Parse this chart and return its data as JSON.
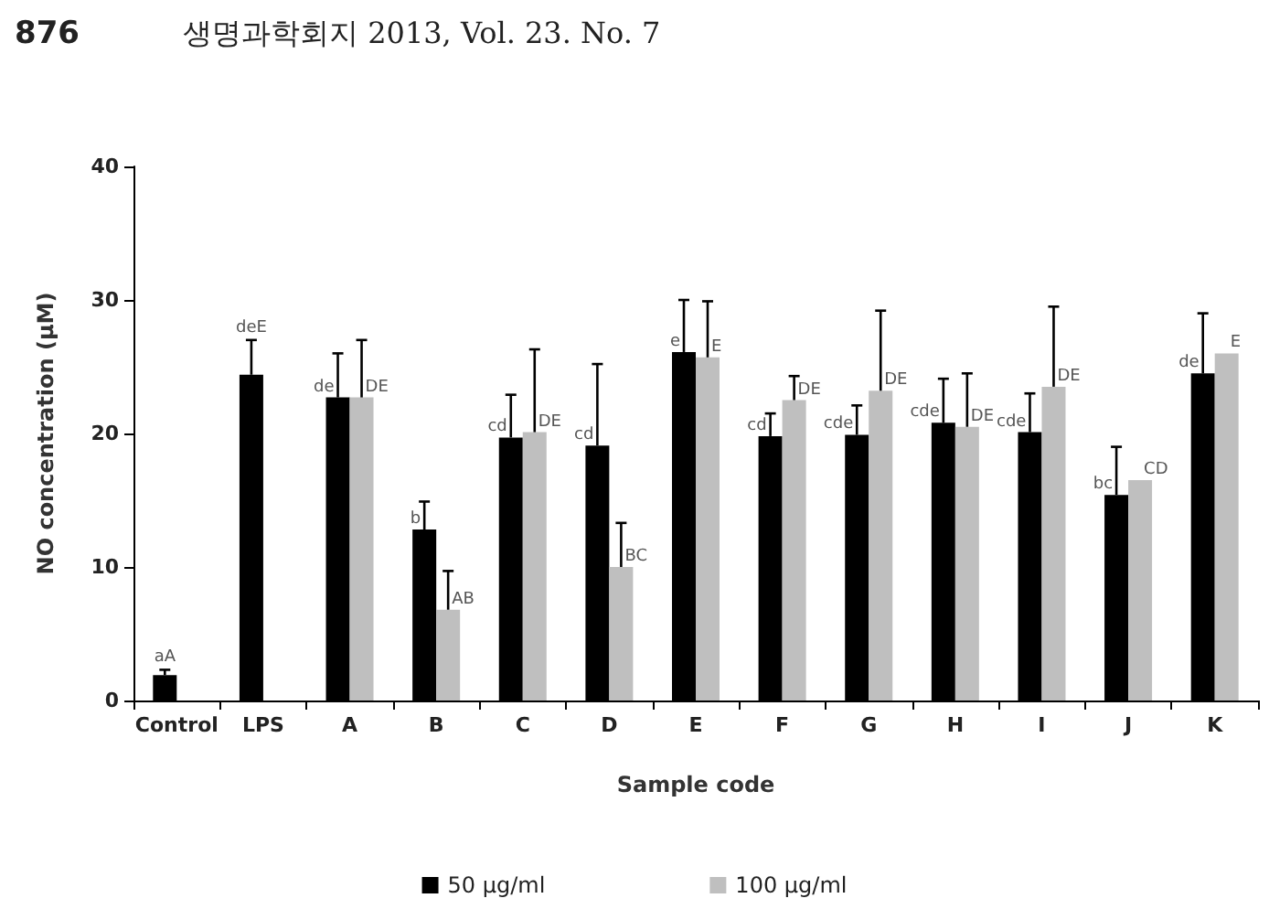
{
  "chart_data": {
    "type": "bar",
    "annotations": [
      "876",
      "생명과학회지 2013, Vol. 23. No. 7"
    ],
    "xlabel": "Sample code",
    "ylabel": "NO concentration (μM)",
    "categories": [
      "Control",
      "LPS",
      "A",
      "B",
      "C",
      "D",
      "E",
      "F",
      "G",
      "H",
      "I",
      "J",
      "K"
    ],
    "series": [
      {
        "name": "50 μg/ml",
        "color": "#000000",
        "values": [
          1.9,
          24.4,
          22.7,
          12.8,
          19.7,
          19.1,
          26.1,
          19.8,
          19.9,
          20.8,
          20.1,
          15.4,
          24.5
        ],
        "errors": [
          0.4,
          2.6,
          3.3,
          2.1,
          3.2,
          6.1,
          3.9,
          1.7,
          2.2,
          3.3,
          2.9,
          3.6,
          4.5
        ],
        "value_labels": [
          "aA",
          "deE",
          "de",
          "b",
          "cd",
          "cd",
          "e",
          "cd",
          "cde",
          "cde",
          "cde",
          "bc",
          "de"
        ]
      },
      {
        "name": "100 μg/ml",
        "color": "#bfbfbf",
        "values": [
          null,
          null,
          22.7,
          6.8,
          20.1,
          10.0,
          25.7,
          22.5,
          23.2,
          20.5,
          23.5,
          16.5,
          26.0
        ],
        "errors": [
          null,
          null,
          4.3,
          2.9,
          6.2,
          3.3,
          4.2,
          1.8,
          6.0,
          4.0,
          6.0,
          null,
          null
        ],
        "value_labels": [
          null,
          null,
          "DE",
          "AB",
          "DE",
          "BC",
          "E",
          "DE",
          "DE",
          "DE",
          "DE",
          "CD",
          "E"
        ]
      }
    ],
    "ylim": [
      0,
      40
    ],
    "yticks": [
      0,
      10,
      20,
      30,
      40
    ],
    "grid": false,
    "legend": "bottom"
  }
}
